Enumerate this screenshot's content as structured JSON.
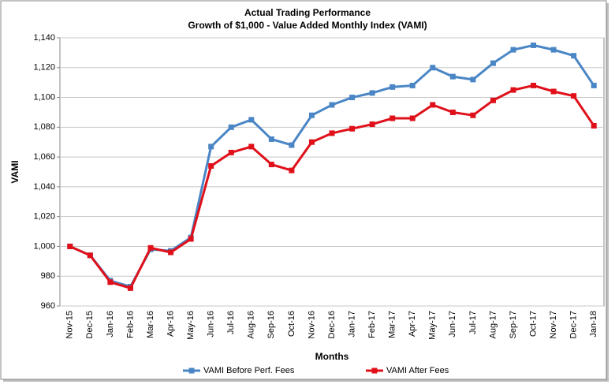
{
  "chart_data": {
    "type": "line",
    "title": "Actual Trading Performance",
    "subtitle": "Growth of $1,000 - Value Added Monthly Index (VAMI)",
    "x_label": "Months",
    "y_label": "VAMI",
    "categories": [
      "Nov-15",
      "Dec-15",
      "Jan-16",
      "Feb-16",
      "Mar-16",
      "Apr-16",
      "May-16",
      "Jun-16",
      "Jul-16",
      "Aug-16",
      "Sep-16",
      "Oct-16",
      "Nov-16",
      "Dec-16",
      "Jan-17",
      "Feb-17",
      "Mar-17",
      "Apr-17",
      "May-17",
      "Jun-17",
      "Jul-17",
      "Aug-17",
      "Sep-17",
      "Oct-17",
      "Nov-17",
      "Dec-17",
      "Jan-18"
    ],
    "series": [
      {
        "name": "VAMI Before Perf. Fees",
        "color": "#4a86c5",
        "values": [
          1000,
          994,
          977,
          973,
          998,
          997,
          1006,
          1067,
          1080,
          1085,
          1072,
          1068,
          1088,
          1095,
          1100,
          1103,
          1107,
          1108,
          1120,
          1114,
          1112,
          1123,
          1132,
          1135,
          1132,
          1128,
          1108
        ]
      },
      {
        "name": "VAMI After Fees",
        "color": "#e0101a",
        "values": [
          1000,
          994,
          976,
          972,
          999,
          996,
          1005,
          1054,
          1063,
          1067,
          1055,
          1051,
          1070,
          1076,
          1079,
          1082,
          1086,
          1086,
          1095,
          1090,
          1088,
          1098,
          1105,
          1108,
          1104,
          1101,
          1081
        ]
      }
    ],
    "ylim": [
      960,
      1140
    ],
    "yticks": [
      960,
      980,
      {
        "value": 1000,
        "label": "1,000"
      },
      {
        "value": 1020,
        "label": "1,020"
      },
      {
        "value": 1040,
        "label": "1,040"
      },
      {
        "value": 1060,
        "label": "1,060"
      },
      {
        "value": 1080,
        "label": "1,080"
      },
      {
        "value": 1100,
        "label": "1,100"
      },
      {
        "value": 1120,
        "label": "1,120"
      },
      {
        "value": 1140,
        "label": "1,140"
      }
    ],
    "grid": true,
    "legend": "bottom"
  }
}
